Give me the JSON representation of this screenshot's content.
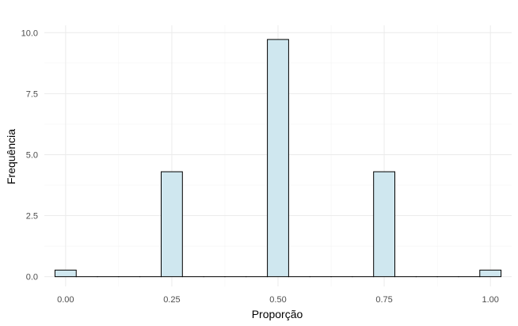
{
  "chart_data": {
    "type": "bar",
    "title": "",
    "xlabel": "Proporção",
    "ylabel": "Frequência",
    "xlim": [
      -0.05,
      1.05
    ],
    "ylim": [
      -0.4,
      10.3
    ],
    "x_ticks": [
      {
        "value": 0.0,
        "label": "0.00"
      },
      {
        "value": 0.25,
        "label": "0.25"
      },
      {
        "value": 0.5,
        "label": "0.50"
      },
      {
        "value": 0.75,
        "label": "0.75"
      },
      {
        "value": 1.0,
        "label": "1.00"
      }
    ],
    "y_ticks": [
      {
        "value": 0.0,
        "label": "0.0"
      },
      {
        "value": 2.5,
        "label": "2.5"
      },
      {
        "value": 5.0,
        "label": "5.0"
      },
      {
        "value": 7.5,
        "label": "7.5"
      },
      {
        "value": 10.0,
        "label": "10.0"
      }
    ],
    "bin_width": 0.05,
    "bins": [
      {
        "center": 0.0,
        "value": 0.27
      },
      {
        "center": 0.05,
        "value": 0
      },
      {
        "center": 0.1,
        "value": 0
      },
      {
        "center": 0.15,
        "value": 0
      },
      {
        "center": 0.2,
        "value": 0
      },
      {
        "center": 0.25,
        "value": 4.3
      },
      {
        "center": 0.3,
        "value": 0
      },
      {
        "center": 0.35,
        "value": 0
      },
      {
        "center": 0.4,
        "value": 0
      },
      {
        "center": 0.45,
        "value": 0
      },
      {
        "center": 0.5,
        "value": 9.72
      },
      {
        "center": 0.55,
        "value": 0
      },
      {
        "center": 0.6,
        "value": 0
      },
      {
        "center": 0.65,
        "value": 0
      },
      {
        "center": 0.7,
        "value": 0
      },
      {
        "center": 0.75,
        "value": 4.3
      },
      {
        "center": 0.8,
        "value": 0
      },
      {
        "center": 0.85,
        "value": 0
      },
      {
        "center": 0.9,
        "value": 0
      },
      {
        "center": 0.95,
        "value": 0
      },
      {
        "center": 1.0,
        "value": 0.27
      }
    ],
    "grid": true,
    "legend": "none",
    "colors": {
      "bar_fill": "#cfe7ef",
      "bar_stroke": "#000000",
      "grid_major": "#ebebeb",
      "grid_minor": "#f4f4f4",
      "tick_text": "#4d4d4d",
      "axis_title": "#000000"
    }
  }
}
